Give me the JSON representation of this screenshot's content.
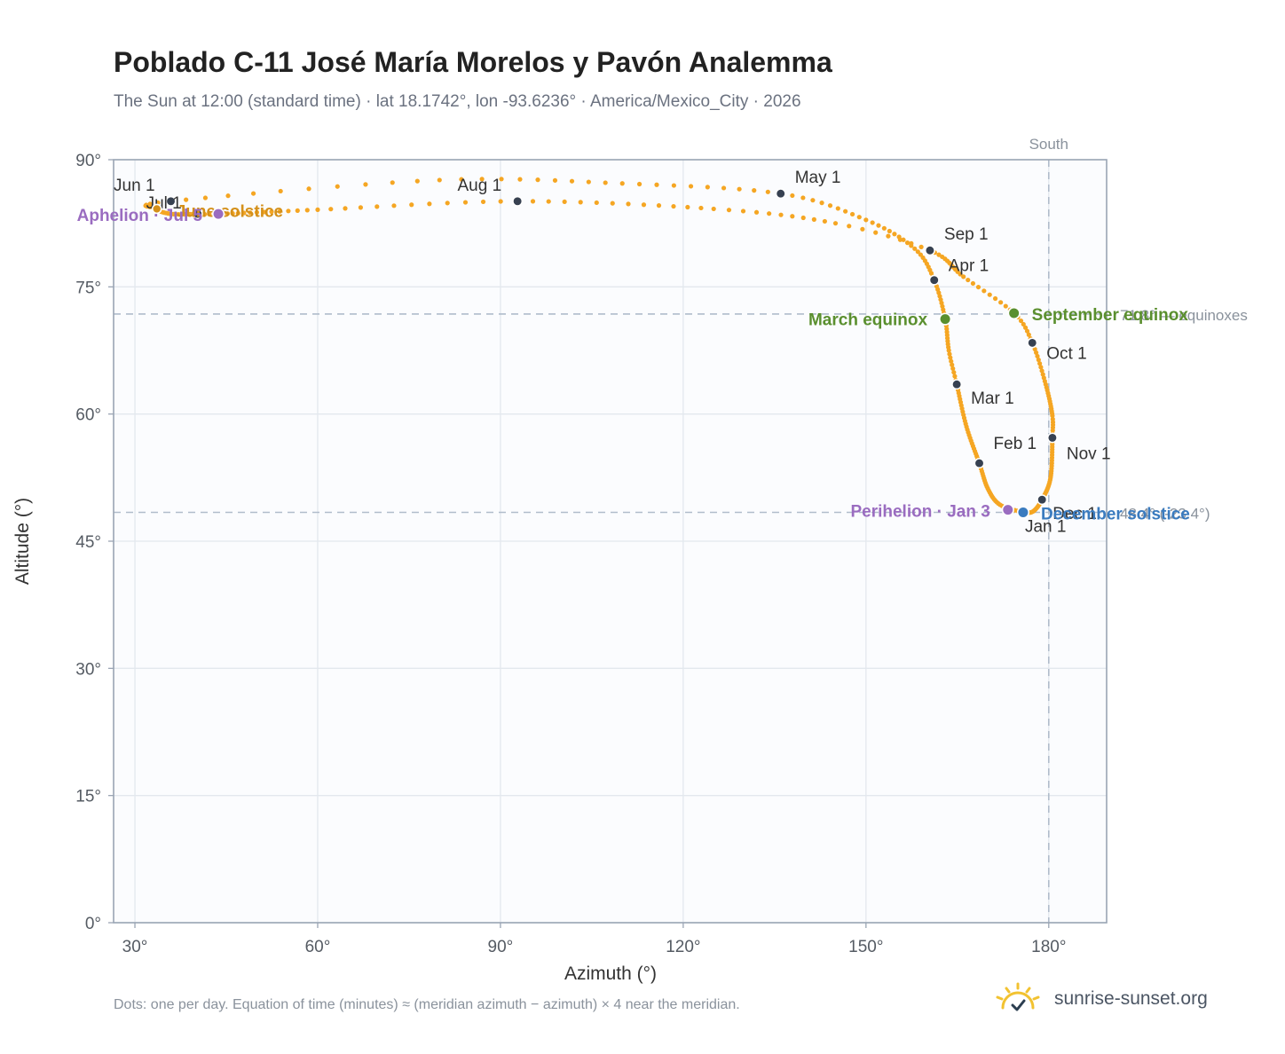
{
  "header": {
    "title": "Poblado C-11 José María Morelos y Pavón Analemma",
    "subtitle": "The Sun at 12:00 (standard time) · lat 18.1742°, lon -93.6236° · America/Mexico_City · 2026"
  },
  "footer": {
    "note": "Dots: one per day. Equation of time (minutes) ≈ (meridian azimuth − azimuth) × 4 near the meridian.",
    "brand": "sunrise-sunset.org"
  },
  "colors": {
    "analemma": "#f5a623",
    "month_marker": "#374151",
    "equinox": "#5a8f2e",
    "solstice_summer": "#d4901a",
    "solstice_winter": "#3a7bbf",
    "apsis": "#9a6cc0",
    "reference_line": "#b0bccb",
    "plot_background": "#fbfcfe",
    "grid": "#e3e8ee"
  },
  "chart_data": {
    "type": "scatter",
    "title": "Poblado C-11 José María Morelos y Pavón Analemma",
    "xlabel": "Azimuth (°)",
    "ylabel": "Altitude (°)",
    "xlim": [
      26.5,
      189.5
    ],
    "ylim": [
      0,
      90
    ],
    "xticks": [
      30,
      60,
      90,
      120,
      150,
      180
    ],
    "xtick_labels": [
      "30°",
      "60°",
      "90°",
      "120°",
      "150°",
      "180°"
    ],
    "yticks": [
      0,
      15,
      30,
      45,
      60,
      75,
      90
    ],
    "ytick_labels": [
      "0°",
      "15°",
      "30°",
      "45°",
      "60°",
      "75°",
      "90°"
    ],
    "grid": true,
    "legend": "none",
    "south_line": {
      "x": 180,
      "label": "South"
    },
    "reference_lines": [
      {
        "y": 71.8,
        "label": "71.8° — equinoxes"
      },
      {
        "y": 48.4,
        "label": "48.4° (-23.4°)"
      }
    ],
    "month_markers": [
      {
        "label": "Jan 1",
        "x": 175.8,
        "y": 48.4
      },
      {
        "label": "Feb 1",
        "x": 168.6,
        "y": 54.2
      },
      {
        "label": "Mar 1",
        "x": 164.9,
        "y": 63.5
      },
      {
        "label": "Apr 1",
        "x": 161.2,
        "y": 75.8
      },
      {
        "label": "May 1",
        "x": 136.0,
        "y": 86.0
      },
      {
        "label": "Jun 1",
        "x": 35.9,
        "y": 85.1
      },
      {
        "label": "Jul 1",
        "x": 40.3,
        "y": 83.6
      },
      {
        "label": "Aug 1",
        "x": 92.8,
        "y": 85.1
      },
      {
        "label": "Sep 1",
        "x": 160.5,
        "y": 79.3
      },
      {
        "label": "Oct 1",
        "x": 177.3,
        "y": 68.4
      },
      {
        "label": "Nov 1",
        "x": 180.6,
        "y": 57.2
      },
      {
        "label": "Dec 1",
        "x": 178.9,
        "y": 49.9
      }
    ],
    "special_points": [
      {
        "label": "March equinox",
        "x": 163.0,
        "y": 71.2,
        "kind": "equinox"
      },
      {
        "label": "September equinox",
        "x": 174.3,
        "y": 71.9,
        "kind": "equinox"
      },
      {
        "label": "June solstice",
        "x": 33.6,
        "y": 84.2,
        "kind": "solstice_summer"
      },
      {
        "label": "December solstice",
        "x": 175.8,
        "y": 48.4,
        "kind": "solstice_winter"
      },
      {
        "label": "Aphelion · Jul 5",
        "x": 43.7,
        "y": 83.6,
        "kind": "apsis"
      },
      {
        "label": "Perihelion · Jan 3",
        "x": 173.3,
        "y": 48.7,
        "kind": "apsis"
      }
    ],
    "path_keypoints": [
      {
        "doy": 0,
        "x": 175.8,
        "y": 48.4
      },
      {
        "doy": 10,
        "x": 172.0,
        "y": 49.3
      },
      {
        "doy": 20,
        "x": 170.0,
        "y": 51.2
      },
      {
        "doy": 31,
        "x": 168.6,
        "y": 54.2
      },
      {
        "doy": 45,
        "x": 166.5,
        "y": 58.5
      },
      {
        "doy": 59,
        "x": 164.9,
        "y": 63.5
      },
      {
        "doy": 68,
        "x": 163.6,
        "y": 67.5
      },
      {
        "doy": 78,
        "x": 163.0,
        "y": 71.2
      },
      {
        "doy": 90,
        "x": 161.2,
        "y": 75.8
      },
      {
        "doy": 100,
        "x": 158.0,
        "y": 79.5
      },
      {
        "doy": 110,
        "x": 150.0,
        "y": 82.9
      },
      {
        "doy": 120,
        "x": 136.0,
        "y": 86.0
      },
      {
        "doy": 130,
        "x": 110.0,
        "y": 87.2
      },
      {
        "doy": 140,
        "x": 80.0,
        "y": 87.6
      },
      {
        "doy": 151,
        "x": 35.9,
        "y": 85.1
      },
      {
        "doy": 160,
        "x": 33.6,
        "y": 84.2
      },
      {
        "doy": 171,
        "x": 36.0,
        "y": 83.6
      },
      {
        "doy": 181,
        "x": 40.3,
        "y": 83.6
      },
      {
        "doy": 186,
        "x": 43.7,
        "y": 83.6
      },
      {
        "doy": 200,
        "x": 60.0,
        "y": 84.1
      },
      {
        "doy": 212,
        "x": 92.8,
        "y": 85.1
      },
      {
        "doy": 225,
        "x": 125.0,
        "y": 84.2
      },
      {
        "doy": 235,
        "x": 145.0,
        "y": 82.5
      },
      {
        "doy": 243,
        "x": 160.5,
        "y": 79.3
      },
      {
        "doy": 255,
        "x": 166.0,
        "y": 76.2
      },
      {
        "doy": 265,
        "x": 174.3,
        "y": 71.9
      },
      {
        "doy": 273,
        "x": 177.3,
        "y": 68.4
      },
      {
        "doy": 285,
        "x": 179.5,
        "y": 63.5
      },
      {
        "doy": 297,
        "x": 180.6,
        "y": 59.8
      },
      {
        "doy": 304,
        "x": 180.6,
        "y": 57.2
      },
      {
        "doy": 320,
        "x": 180.3,
        "y": 52.5
      },
      {
        "doy": 334,
        "x": 178.9,
        "y": 49.9
      },
      {
        "doy": 345,
        "x": 177.4,
        "y": 48.5
      },
      {
        "doy": 354,
        "x": 175.8,
        "y": 48.4
      },
      {
        "doy": 365,
        "x": 175.8,
        "y": 48.4
      }
    ]
  }
}
